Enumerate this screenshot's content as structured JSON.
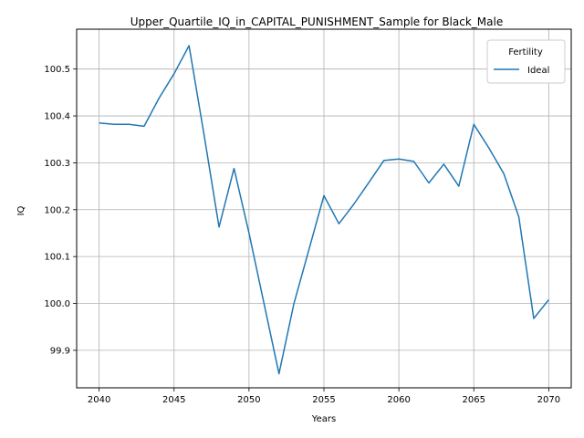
{
  "chart_data": {
    "type": "line",
    "title": "Upper_Quartile_IQ_in_CAPITAL_PUNISHMENT_Sample for Black_Male",
    "xlabel": "Years",
    "ylabel": "IQ",
    "xlim": [
      2038.5,
      2071.5
    ],
    "ylim": [
      99.82,
      100.585
    ],
    "xticks": [
      2040,
      2045,
      2050,
      2055,
      2060,
      2065,
      2070
    ],
    "yticks": [
      99.9,
      100.0,
      100.1,
      100.2,
      100.3,
      100.4,
      100.5
    ],
    "grid": true,
    "legend": {
      "title": "Fertility",
      "placement": "top-right"
    },
    "series": [
      {
        "name": "Ideal",
        "color": "#1f77b4",
        "x": [
          2040,
          2041,
          2042,
          2043,
          2044,
          2045,
          2046,
          2047,
          2048,
          2049,
          2050,
          2051,
          2052,
          2053,
          2054,
          2055,
          2056,
          2057,
          2058,
          2059,
          2060,
          2061,
          2062,
          2063,
          2064,
          2065,
          2066,
          2067,
          2068,
          2069,
          2070
        ],
        "y": [
          100.385,
          100.382,
          100.382,
          100.378,
          100.438,
          100.49,
          100.55,
          100.36,
          100.163,
          100.288,
          100.15,
          100.0,
          99.85,
          100.0,
          100.115,
          100.23,
          100.17,
          100.212,
          100.258,
          100.305,
          100.308,
          100.303,
          100.257,
          100.297,
          100.25,
          100.382,
          100.332,
          100.277,
          100.185,
          99.968,
          100.008
        ]
      }
    ]
  }
}
